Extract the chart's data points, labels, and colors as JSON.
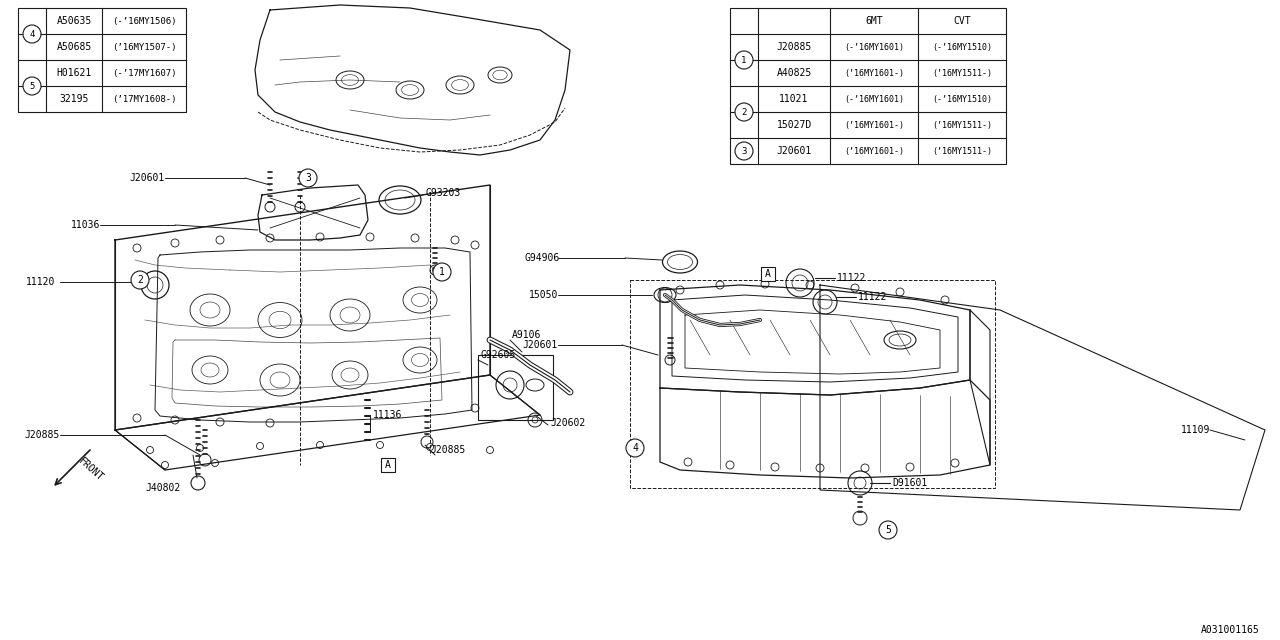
{
  "bg_color": "#ffffff",
  "line_color": "#1a1a1a",
  "fig_width": 12.8,
  "fig_height": 6.4,
  "watermark": "A031001165",
  "table1": {
    "header": [
      "",
      "6MT",
      "CVT"
    ],
    "rows": [
      [
        "1",
        "J20885",
        "(-’16MY1601)",
        "(-’16MY1510)"
      ],
      [
        "1",
        "A40825",
        "(’16MY1601-)",
        "(’16MY1511-)"
      ],
      [
        "2",
        "11021",
        "(-’16MY1601)",
        "(-’16MY1510)"
      ],
      [
        "2",
        "15027D",
        "(’16MY1601-)",
        "(’16MY1511-)"
      ],
      [
        "3",
        "J20601",
        "(’16MY1601-)",
        "(’16MY1511-)"
      ]
    ]
  },
  "table2": {
    "rows": [
      [
        "4",
        "A50635",
        "(-’16MY1506)"
      ],
      [
        "4",
        "A50685",
        "(’16MY1507-)"
      ],
      [
        "5",
        "H01621",
        "(-’17MY1607)"
      ],
      [
        "5",
        "32195",
        "(’17MY1608-)"
      ]
    ]
  }
}
